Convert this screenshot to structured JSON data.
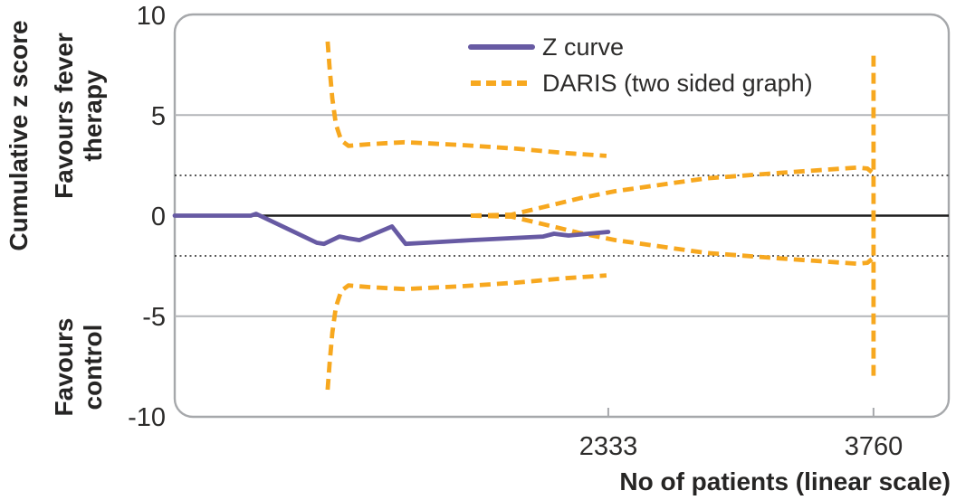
{
  "colors": {
    "z_curve": "#675aa3",
    "daris": "#f7a81f",
    "grid_gray": "#b3b5b8",
    "border": "#a6a8ab",
    "zero_line": "#1b1b1b",
    "dotted_line": "#222222",
    "text": "#2d2c2b"
  },
  "y_axis": {
    "title": "Cumulative z score",
    "upper_region_line1": "Favours fever",
    "upper_region_line2": "therapy",
    "lower_region_line1": "Favours",
    "lower_region_line2": "control",
    "ticks": [
      "10",
      "5",
      "0",
      "-5",
      "-10"
    ]
  },
  "x_axis": {
    "title": "No of patients (linear scale)",
    "ticks": [
      "2333",
      "3760"
    ]
  },
  "legend": {
    "items": [
      {
        "label": "Z curve",
        "style": "solid",
        "color": "#675aa3"
      },
      {
        "label": "DARIS (two sided graph)",
        "style": "dashed",
        "color": "#f7a81f"
      }
    ]
  },
  "chart_data": {
    "type": "line",
    "title": "",
    "xlabel": "No of patients (linear scale)",
    "ylabel": "Cumulative z score",
    "xlim": [
      0,
      4165
    ],
    "ylim": [
      -10,
      10
    ],
    "x_ticks": [
      2333,
      3760
    ],
    "y_ticks": [
      10,
      5,
      0,
      -5,
      -10
    ],
    "legend_position": "top-center-inside",
    "grid": "horizontal-only",
    "gridlines": [
      {
        "z": 5,
        "style": "solid-gray"
      },
      {
        "z": -5,
        "style": "solid-gray"
      },
      {
        "z": 2,
        "style": "dotted"
      },
      {
        "z": -2,
        "style": "dotted"
      },
      {
        "z": 0,
        "style": "zero"
      }
    ],
    "series": [
      {
        "name": "DARIS upper monitoring boundary",
        "style": "dashed",
        "color": "#f7a81f",
        "points": [
          [
            823,
            8.65
          ],
          [
            833,
            7.39
          ],
          [
            848,
            5.81
          ],
          [
            867,
            4.55
          ],
          [
            896,
            3.74
          ],
          [
            935,
            3.47
          ],
          [
            1057,
            3.56
          ],
          [
            1237,
            3.65
          ],
          [
            1544,
            3.51
          ],
          [
            1836,
            3.33
          ],
          [
            2104,
            3.11
          ],
          [
            2323,
            2.97
          ]
        ]
      },
      {
        "name": "DARIS lower monitoring boundary",
        "style": "dashed",
        "color": "#f7a81f",
        "points": [
          [
            823,
            -8.65
          ],
          [
            833,
            -7.39
          ],
          [
            848,
            -5.81
          ],
          [
            867,
            -4.55
          ],
          [
            896,
            -3.74
          ],
          [
            935,
            -3.47
          ],
          [
            1057,
            -3.56
          ],
          [
            1237,
            -3.65
          ],
          [
            1544,
            -3.51
          ],
          [
            1836,
            -3.33
          ],
          [
            2104,
            -3.11
          ],
          [
            2323,
            -2.97
          ]
        ]
      },
      {
        "name": "DARIS inner wedge upper (futility)",
        "style": "dashed",
        "color": "#f7a81f",
        "points": [
          [
            1593,
            0
          ],
          [
            1812,
            0.05
          ],
          [
            1973,
            0.4
          ],
          [
            2177,
            0.86
          ],
          [
            2372,
            1.22
          ],
          [
            2859,
            1.85
          ],
          [
            3249,
            2.12
          ],
          [
            3673,
            2.39
          ],
          [
            3727,
            2.34
          ],
          [
            3751,
            2.16
          ]
        ]
      },
      {
        "name": "DARIS inner wedge lower (futility)",
        "style": "dashed",
        "color": "#f7a81f",
        "points": [
          [
            1593,
            0
          ],
          [
            1812,
            -0.05
          ],
          [
            1973,
            -0.4
          ],
          [
            2177,
            -0.86
          ],
          [
            2372,
            -1.22
          ],
          [
            2859,
            -1.85
          ],
          [
            3249,
            -2.12
          ],
          [
            3673,
            -2.39
          ],
          [
            3727,
            -2.34
          ],
          [
            3751,
            -2.16
          ]
        ]
      },
      {
        "name": "DARIS required information size line",
        "style": "dashed",
        "color": "#f7a81f",
        "points": [
          [
            3760,
            7.95
          ],
          [
            3760,
            -8.15
          ]
        ]
      },
      {
        "name": "Z curve",
        "style": "solid",
        "color": "#675aa3",
        "points": [
          [
            0,
            0
          ],
          [
            409,
            0
          ],
          [
            438,
            0.09
          ],
          [
            765,
            -1.35
          ],
          [
            804,
            -1.4
          ],
          [
            887,
            -1.04
          ],
          [
            935,
            -1.13
          ],
          [
            994,
            -1.22
          ],
          [
            1169,
            -0.54
          ],
          [
            1242,
            -1.4
          ],
          [
            1349,
            -1.35
          ],
          [
            1593,
            -1.22
          ],
          [
            1788,
            -1.13
          ],
          [
            1983,
            -1.04
          ],
          [
            2041,
            -0.9
          ],
          [
            2119,
            -0.99
          ],
          [
            2226,
            -0.9
          ],
          [
            2333,
            -0.81
          ]
        ]
      }
    ]
  }
}
